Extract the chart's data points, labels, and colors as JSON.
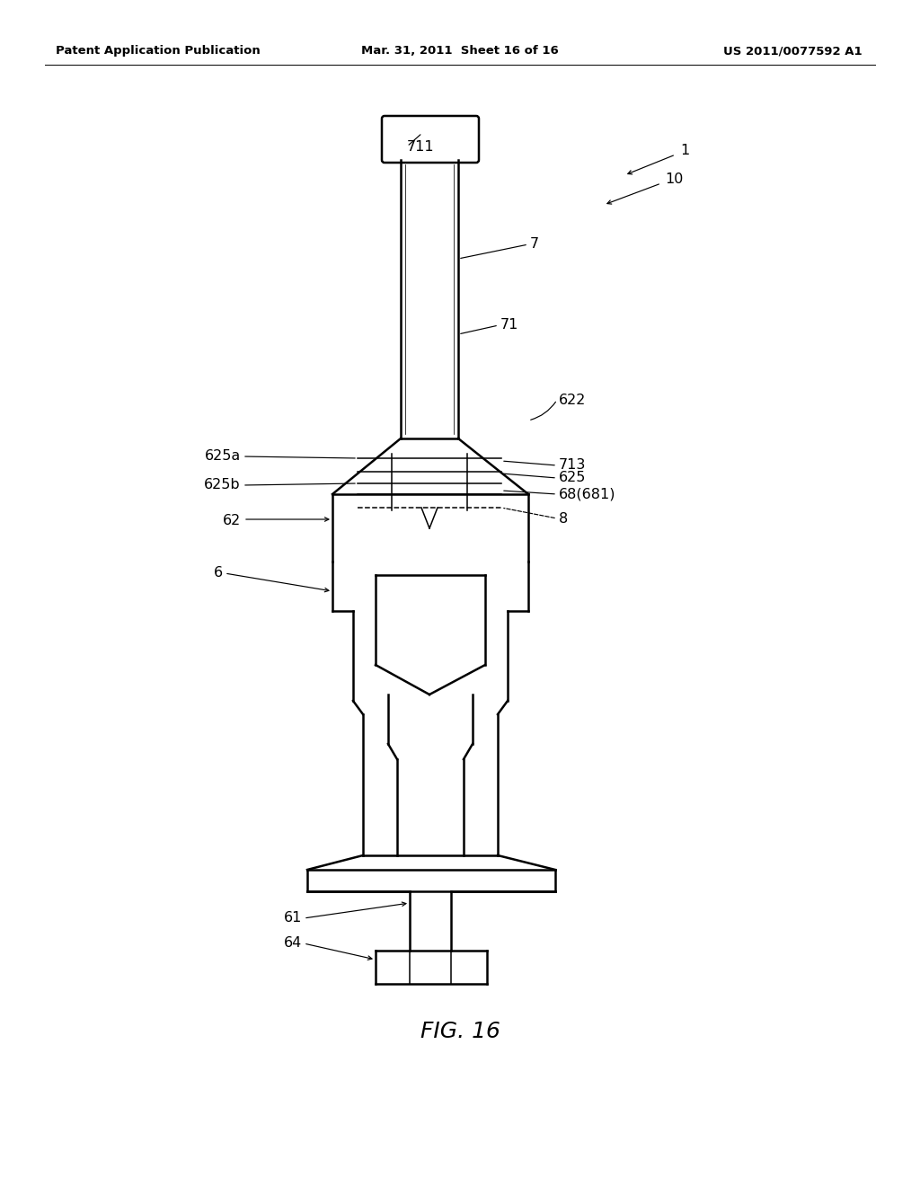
{
  "bg_color": "#ffffff",
  "lc": "#000000",
  "header_left": "Patent Application Publication",
  "header_mid": "Mar. 31, 2011  Sheet 16 of 16",
  "header_right": "US 2011/0077592 A1",
  "figure_label": "FIG. 16",
  "lw_main": 1.8,
  "lw_thin": 1.1,
  "label_fs": 11.5,
  "header_fs": 9.5,
  "fig_label_fs": 18
}
